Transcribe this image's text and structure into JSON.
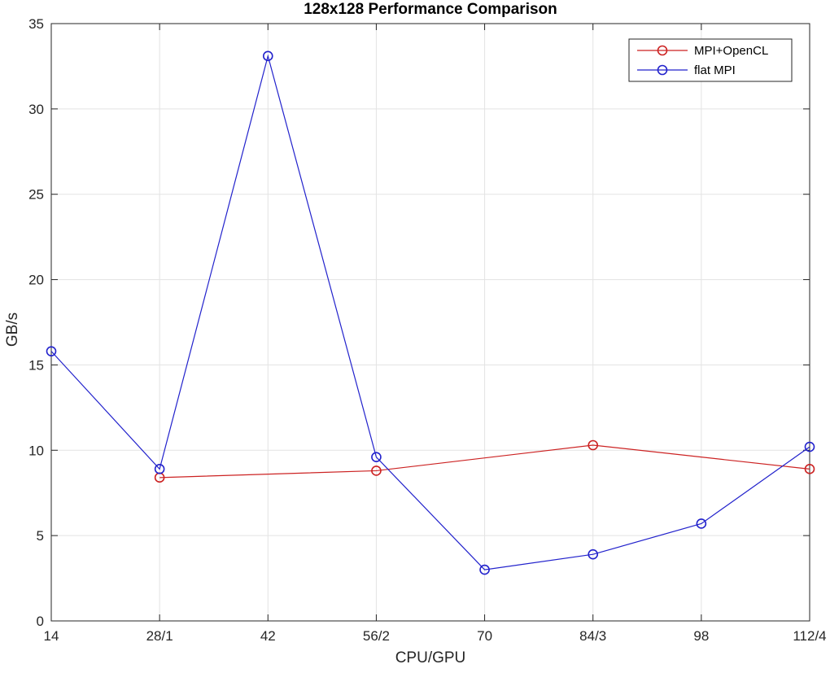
{
  "chart_data": {
    "type": "line",
    "title": "128x128 Performance Comparison",
    "xlabel": "CPU/GPU",
    "ylabel": "GB/s",
    "x_ticks": [
      "14",
      "28/1",
      "42",
      "56/2",
      "70",
      "84/3",
      "98",
      "112/4"
    ],
    "y_ticks": [
      "0",
      "5",
      "10",
      "15",
      "20",
      "25",
      "30",
      "35"
    ],
    "ylim": [
      0,
      35
    ],
    "grid": true,
    "legend_position": "top-right",
    "marker": "circle",
    "series": [
      {
        "name": "MPI+OpenCL",
        "color": "#cc2222",
        "points": [
          {
            "x": "28/1",
            "y": 8.4
          },
          {
            "x": "56/2",
            "y": 8.8
          },
          {
            "x": "84/3",
            "y": 10.3
          },
          {
            "x": "112/4",
            "y": 8.9
          }
        ]
      },
      {
        "name": "flat MPI",
        "color": "#2222cc",
        "points": [
          {
            "x": "14",
            "y": 15.8
          },
          {
            "x": "28/1",
            "y": 8.9
          },
          {
            "x": "42",
            "y": 33.1
          },
          {
            "x": "56/2",
            "y": 9.6
          },
          {
            "x": "70",
            "y": 3.0
          },
          {
            "x": "84/3",
            "y": 3.9
          },
          {
            "x": "98",
            "y": 5.7
          },
          {
            "x": "112/4",
            "y": 10.2
          }
        ]
      }
    ]
  }
}
